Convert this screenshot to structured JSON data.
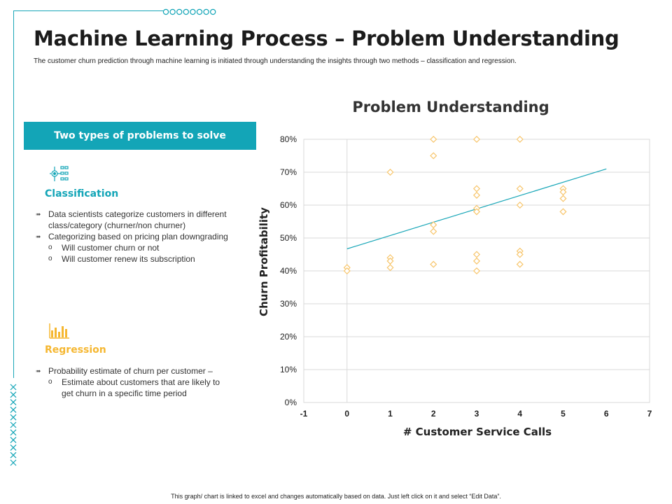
{
  "page": {
    "title": "Machine Learning Process – Problem Understanding",
    "subtitle": "The customer churn prediction through machine learning is initiated through understanding the insights through two methods – classification and regression.",
    "footer": "This graph/ chart is linked to excel and changes automatically based on data. Just left click on it and select “Edit Data”."
  },
  "colors": {
    "accent": "#13a5b7",
    "regression": "#f5b731",
    "marker": "#f7c56b",
    "trendline": "#1aa7b8"
  },
  "panel": {
    "header": "Two types of problems to solve",
    "classification": {
      "icon": "network-icon",
      "title": "Classification",
      "bullets": [
        "Data scientists categorize customers in different class/category (churner/non churner)",
        "Categorizing based on pricing plan downgrading"
      ],
      "sub_bullets": [
        "Will customer churn or not",
        "Will customer renew its subscription"
      ]
    },
    "regression": {
      "icon": "bar-chart-icon",
      "title": "Regression",
      "bullets": [
        "Probability estimate of churn per customer –"
      ],
      "sub_bullets": [
        "Estimate about customers that are likely to get churn in a specific time period"
      ]
    }
  },
  "chart_data": {
    "type": "scatter",
    "title": "Problem Understanding",
    "xlabel": "# Customer Service Calls",
    "ylabel": "Churn Profitability",
    "xlim": [
      -1,
      7
    ],
    "ylim": [
      0,
      0.8
    ],
    "x_ticks": [
      "-1",
      "0",
      "1",
      "2",
      "3",
      "4",
      "5",
      "6",
      "7"
    ],
    "y_ticks": [
      "0%",
      "10%",
      "20%",
      "30%",
      "40%",
      "50%",
      "60%",
      "70%",
      "80%"
    ],
    "grid": "horizontal",
    "series": [
      {
        "points": [
          [
            0,
            0.41
          ],
          [
            0,
            0.4
          ],
          [
            1,
            0.7
          ],
          [
            1,
            0.44
          ],
          [
            1,
            0.43
          ],
          [
            1,
            0.41
          ],
          [
            2,
            0.8
          ],
          [
            2,
            0.75
          ],
          [
            2,
            0.54
          ],
          [
            2,
            0.52
          ],
          [
            2,
            0.42
          ],
          [
            3,
            0.8
          ],
          [
            3,
            0.65
          ],
          [
            3,
            0.63
          ],
          [
            3,
            0.59
          ],
          [
            3,
            0.58
          ],
          [
            3,
            0.45
          ],
          [
            3,
            0.43
          ],
          [
            3,
            0.4
          ],
          [
            4,
            0.8
          ],
          [
            4,
            0.65
          ],
          [
            4,
            0.6
          ],
          [
            4,
            0.46
          ],
          [
            4,
            0.45
          ],
          [
            4,
            0.42
          ],
          [
            5,
            0.65
          ],
          [
            5,
            0.64
          ],
          [
            5,
            0.62
          ],
          [
            5,
            0.58
          ]
        ]
      }
    ],
    "trendline": {
      "from": [
        0,
        0.467
      ],
      "to": [
        6,
        0.71
      ]
    }
  }
}
